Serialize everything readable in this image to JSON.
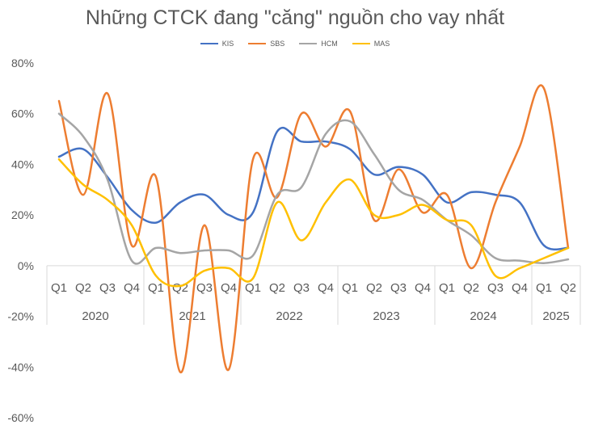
{
  "chart_data": {
    "type": "line",
    "title": "Những CTCK đang \"căng\" nguồn cho vay nhất",
    "xlabel": "",
    "ylabel": "",
    "ylim": [
      -0.6,
      0.8
    ],
    "yticks": [
      "80%",
      "60%",
      "40%",
      "20%",
      "0%",
      "-20%",
      "-40%",
      "-60%"
    ],
    "quarters": [
      "Q1",
      "Q2",
      "Q3",
      "Q4",
      "Q1",
      "Q2",
      "Q3",
      "Q4",
      "Q1",
      "Q2",
      "Q3",
      "Q4",
      "Q1",
      "Q2",
      "Q3",
      "Q4",
      "Q1",
      "Q2",
      "Q3",
      "Q4",
      "Q1",
      "Q2"
    ],
    "years": [
      {
        "label": "2020",
        "count": 4
      },
      {
        "label": "2021",
        "count": 4
      },
      {
        "label": "2022",
        "count": 4
      },
      {
        "label": "2023",
        "count": 4
      },
      {
        "label": "2024",
        "count": 4
      },
      {
        "label": "2025",
        "count": 2
      }
    ],
    "grid": false,
    "legend_position": "top",
    "series": [
      {
        "name": "KIS",
        "color": "#4472C4",
        "values": [
          0.43,
          0.46,
          0.35,
          0.22,
          0.17,
          0.25,
          0.28,
          0.2,
          0.21,
          0.53,
          0.49,
          0.49,
          0.46,
          0.36,
          0.39,
          0.36,
          0.25,
          0.29,
          0.28,
          0.25,
          0.08,
          0.07
        ]
      },
      {
        "name": "SBS",
        "color": "#ED7D31",
        "values": [
          0.65,
          0.28,
          0.68,
          0.08,
          0.35,
          -0.42,
          0.16,
          -0.41,
          0.42,
          0.27,
          0.6,
          0.47,
          0.61,
          0.18,
          0.38,
          0.21,
          0.28,
          -0.01,
          0.25,
          0.47,
          0.7,
          0.07
        ]
      },
      {
        "name": "HCM",
        "color": "#A5A5A5",
        "values": [
          0.6,
          0.51,
          0.34,
          0.02,
          0.07,
          0.05,
          0.06,
          0.06,
          0.04,
          0.28,
          0.31,
          0.52,
          0.57,
          0.44,
          0.3,
          0.26,
          0.18,
          0.12,
          0.03,
          0.02,
          0.01,
          0.025
        ]
      },
      {
        "name": "MAS",
        "color": "#FFC000",
        "values": [
          0.42,
          0.32,
          0.26,
          0.16,
          -0.04,
          -0.08,
          -0.02,
          -0.01,
          -0.05,
          0.25,
          0.1,
          0.25,
          0.34,
          0.2,
          0.2,
          0.24,
          0.18,
          0.16,
          -0.04,
          -0.01,
          0.03,
          0.07
        ]
      }
    ]
  }
}
